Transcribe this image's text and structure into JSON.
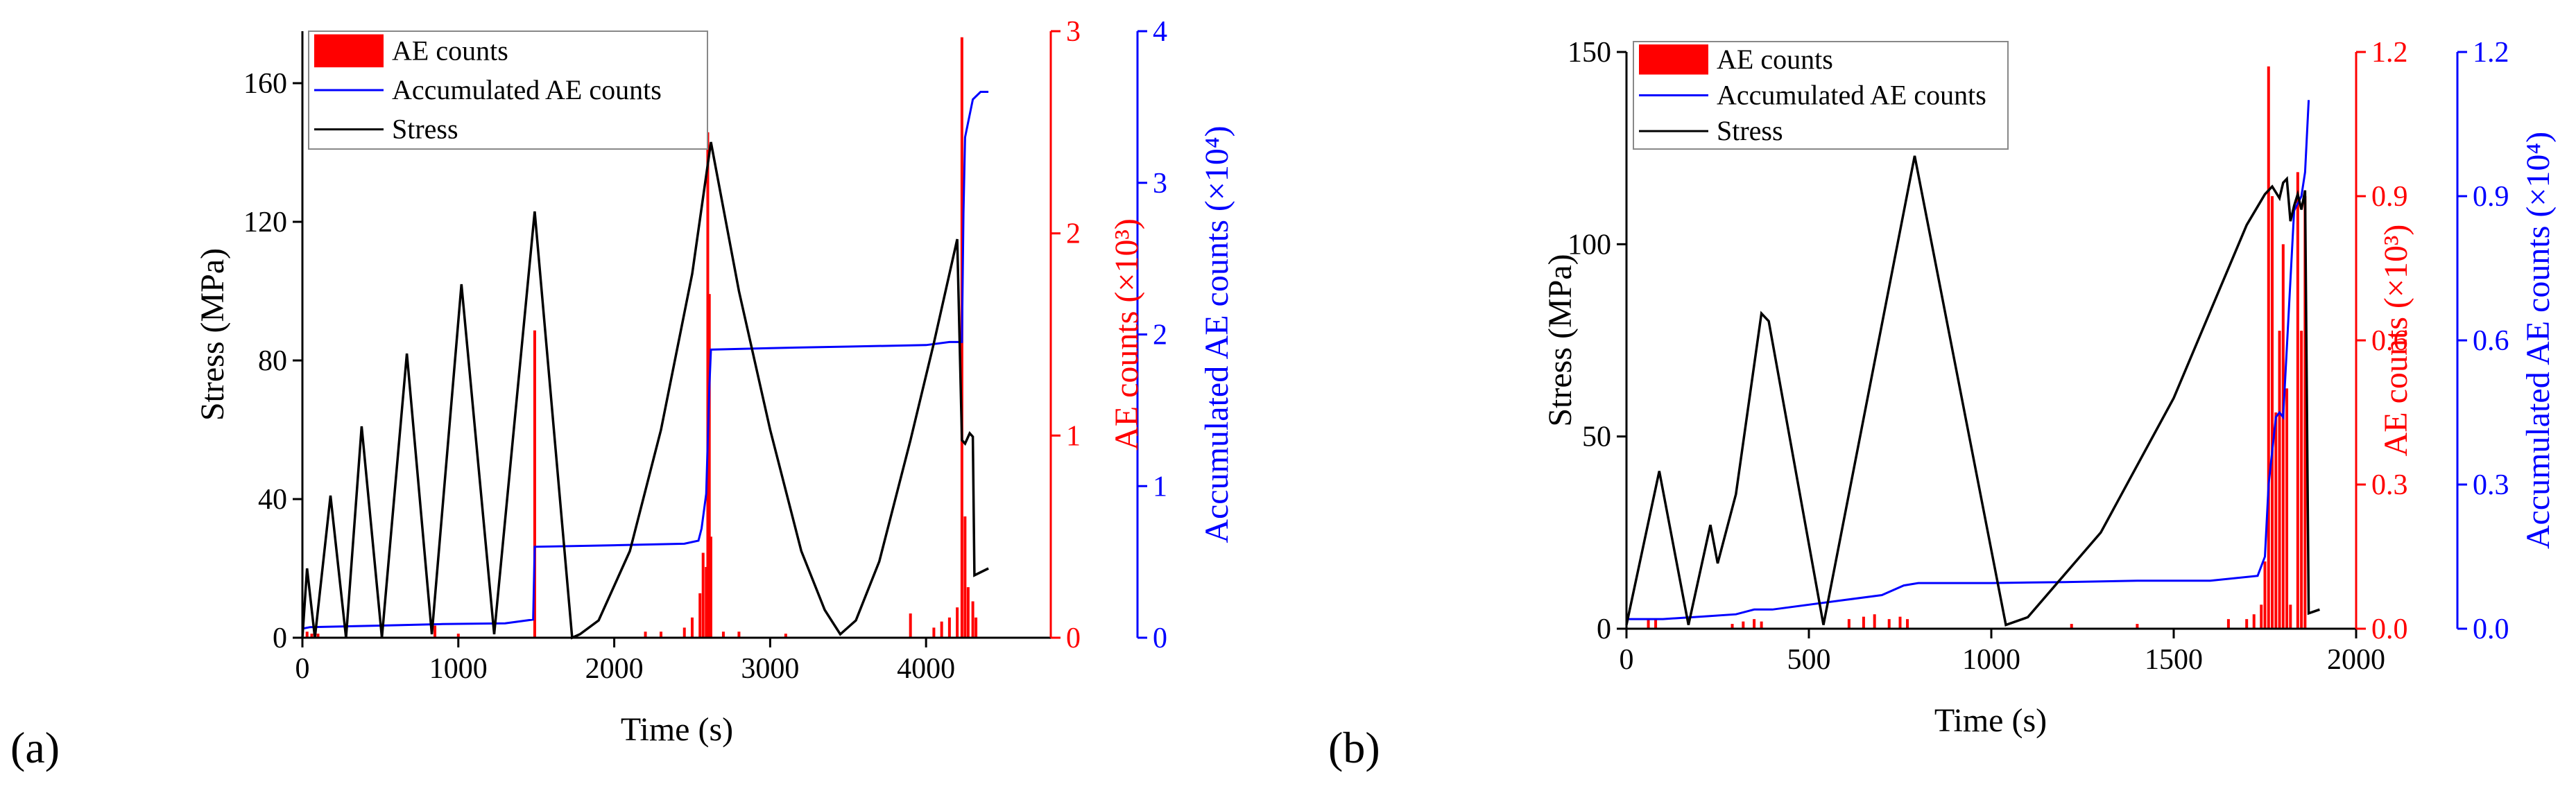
{
  "panels": [
    {
      "label": "(a)",
      "chart_data": {
        "type": "bar+line",
        "xlabel": "Time (s)",
        "ylabel_left": "Stress (MPa)",
        "ylabel_right1": "AE counts (×10³)",
        "ylabel_right2": "Accumulated AE counts (×10⁴)",
        "xlim": [
          0,
          4800
        ],
        "xticks": [
          0,
          1000,
          2000,
          3000,
          4000
        ],
        "ylim_stress": [
          0,
          175
        ],
        "yticks_stress": [
          0,
          40,
          80,
          120,
          160
        ],
        "ylim_ae": [
          0,
          3
        ],
        "yticks_ae": [
          0,
          1,
          2,
          3
        ],
        "ylim_acc": [
          0,
          4
        ],
        "yticks_acc": [
          0,
          1,
          2,
          3,
          4
        ],
        "legend": [
          "AE counts",
          "Accumulated AE counts",
          "Stress"
        ],
        "colors": {
          "ae": "#ff0000",
          "acc": "#0000ff",
          "stress": "#000000"
        },
        "stress": {
          "x": [
            0,
            30,
            80,
            180,
            280,
            380,
            510,
            670,
            830,
            1020,
            1230,
            1490,
            1730,
            1780,
            1900,
            2100,
            2300,
            2500,
            2620,
            2800,
            3000,
            3200,
            3350,
            3450,
            3550,
            3700,
            3900,
            4050,
            4200,
            4230,
            4250,
            4280,
            4300,
            4310,
            4400
          ],
          "y": [
            0,
            20,
            0,
            41,
            0,
            61,
            0,
            82,
            1,
            102,
            1,
            123,
            0,
            1,
            5,
            25,
            60,
            105,
            143,
            100,
            60,
            25,
            8,
            1,
            5,
            22,
            57,
            85,
            115,
            57,
            56,
            59,
            58,
            18,
            20
          ]
        },
        "acc_ae": {
          "x": [
            0,
            50,
            500,
            900,
            1300,
            1480,
            1490,
            2000,
            2450,
            2540,
            2560,
            2590,
            2610,
            2620,
            3000,
            3500,
            4000,
            4150,
            4230,
            4240,
            4250,
            4300,
            4350,
            4400
          ],
          "y": [
            0.06,
            0.07,
            0.08,
            0.09,
            0.095,
            0.12,
            0.6,
            0.61,
            0.62,
            0.64,
            0.72,
            0.95,
            1.65,
            1.9,
            1.91,
            1.92,
            1.93,
            1.95,
            1.95,
            2.8,
            3.3,
            3.55,
            3.6,
            3.6
          ]
        },
        "ae_bars": {
          "x": [
            30,
            60,
            100,
            850,
            1000,
            1490,
            2200,
            2300,
            2450,
            2500,
            2550,
            2570,
            2590,
            2600,
            2610,
            2620,
            2700,
            2800,
            3100,
            3900,
            4050,
            4100,
            4150,
            4200,
            4230,
            4250,
            4270,
            4300,
            4320
          ],
          "y": [
            0.03,
            0.02,
            0.02,
            0.06,
            0.02,
            1.52,
            0.03,
            0.03,
            0.05,
            0.1,
            0.22,
            0.42,
            0.35,
            2.5,
            1.7,
            0.5,
            0.03,
            0.03,
            0.02,
            0.12,
            0.05,
            0.08,
            0.1,
            0.15,
            2.97,
            0.6,
            0.25,
            0.18,
            0.1
          ]
        }
      }
    },
    {
      "label": "(b)",
      "chart_data": {
        "type": "bar+line",
        "xlabel": "Time (s)",
        "ylabel_left": "Stress (MPa)",
        "ylabel_right1": "AE counts (×10³)",
        "ylabel_right2": "Accumulated AE counts (×10⁴)",
        "xlim": [
          0,
          2000
        ],
        "xticks": [
          0,
          500,
          1000,
          1500,
          2000
        ],
        "ylim_stress": [
          0,
          150
        ],
        "yticks_stress": [
          0,
          50,
          100,
          150
        ],
        "ylim_ae": [
          0,
          1.2
        ],
        "yticks_ae": [
          "0.0",
          "0.3",
          "0.6",
          "0.9",
          "1.2"
        ],
        "ylim_acc": [
          0,
          1.2
        ],
        "yticks_acc": [
          "0.0",
          "0.3",
          "0.6",
          "0.9",
          "1.2"
        ],
        "legend": [
          "AE counts",
          "Accumulated AE counts",
          "Stress"
        ],
        "colors": {
          "ae": "#ff0000",
          "acc": "#0000ff",
          "stress": "#000000"
        },
        "stress": {
          "x": [
            0,
            90,
            170,
            230,
            250,
            300,
            370,
            390,
            540,
            790,
            1040,
            1100,
            1300,
            1500,
            1700,
            1750,
            1770,
            1790,
            1800,
            1810,
            1820,
            1830,
            1840,
            1850,
            1860,
            1870,
            1900
          ],
          "y": [
            1,
            41,
            1,
            27,
            17,
            35,
            82,
            80,
            1,
            123,
            1,
            3,
            25,
            60,
            105,
            113,
            115,
            112,
            116,
            117,
            106,
            110,
            113,
            109,
            114,
            4,
            5
          ]
        },
        "acc_ae": {
          "x": [
            0,
            100,
            200,
            300,
            350,
            400,
            600,
            700,
            760,
            800,
            1000,
            1200,
            1400,
            1600,
            1730,
            1750,
            1760,
            1780,
            1790,
            1800,
            1830,
            1850,
            1860,
            1870
          ],
          "y": [
            0.02,
            0.02,
            0.025,
            0.03,
            0.04,
            0.04,
            0.06,
            0.07,
            0.09,
            0.095,
            0.095,
            0.097,
            0.1,
            0.1,
            0.11,
            0.15,
            0.3,
            0.44,
            0.45,
            0.44,
            0.87,
            0.9,
            0.95,
            1.1
          ]
        },
        "ae_bars": {
          "x": [
            60,
            80,
            290,
            320,
            350,
            370,
            610,
            650,
            680,
            720,
            750,
            770,
            1220,
            1400,
            1650,
            1700,
            1720,
            1740,
            1750,
            1760,
            1770,
            1780,
            1790,
            1800,
            1810,
            1820,
            1840,
            1850,
            1860
          ],
          "y": [
            0.02,
            0.02,
            0.01,
            0.015,
            0.02,
            0.015,
            0.02,
            0.025,
            0.03,
            0.02,
            0.025,
            0.02,
            0.01,
            0.01,
            0.02,
            0.02,
            0.03,
            0.05,
            0.14,
            1.17,
            0.9,
            0.45,
            0.62,
            0.8,
            0.5,
            0.05,
            0.95,
            0.62,
            0.9
          ]
        }
      }
    }
  ]
}
